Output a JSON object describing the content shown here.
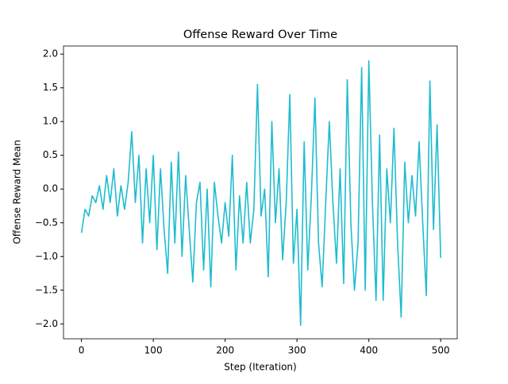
{
  "chart_data": {
    "type": "line",
    "title": "Offense Reward Over Time",
    "x_label": "Step (Iteration)",
    "y_label": "Offense Reward Mean",
    "x": [
      0,
      5,
      10,
      15,
      20,
      25,
      30,
      35,
      40,
      45,
      50,
      55,
      60,
      65,
      70,
      75,
      80,
      85,
      90,
      95,
      100,
      105,
      110,
      115,
      120,
      125,
      130,
      135,
      140,
      145,
      150,
      155,
      160,
      165,
      170,
      175,
      180,
      185,
      190,
      195,
      200,
      205,
      210,
      215,
      220,
      225,
      230,
      235,
      240,
      245,
      250,
      255,
      260,
      265,
      270,
      275,
      280,
      285,
      290,
      295,
      300,
      305,
      310,
      315,
      320,
      325,
      330,
      335,
      340,
      345,
      350,
      355,
      360,
      365,
      370,
      375,
      380,
      385,
      390,
      395,
      400,
      405,
      410,
      415,
      420,
      425,
      430,
      435,
      440,
      445,
      450,
      455,
      460,
      465,
      470,
      475,
      480,
      485,
      490,
      495,
      500
    ],
    "series": [
      {
        "name": "Offense Reward Mean",
        "color": "#1fbccf",
        "values": [
          -0.65,
          -0.3,
          -0.4,
          -0.1,
          -0.2,
          0.05,
          -0.3,
          0.2,
          -0.2,
          0.3,
          -0.4,
          0.05,
          -0.3,
          0.1,
          0.85,
          -0.2,
          0.5,
          -0.8,
          0.3,
          -0.5,
          0.5,
          -0.9,
          0.3,
          -0.6,
          -1.25,
          0.4,
          -0.8,
          0.55,
          -1.0,
          0.2,
          -0.6,
          -1.38,
          -0.2,
          0.1,
          -1.2,
          0.0,
          -1.45,
          0.1,
          -0.4,
          -0.8,
          -0.2,
          -0.7,
          0.5,
          -1.2,
          -0.1,
          -0.8,
          0.1,
          -0.8,
          -0.3,
          1.55,
          -0.4,
          0.0,
          -1.3,
          1.0,
          -0.5,
          0.3,
          -1.05,
          -0.2,
          1.4,
          -1.1,
          -0.3,
          -2.02,
          0.7,
          -1.2,
          -0.1,
          1.35,
          -0.8,
          -1.45,
          -0.2,
          1.0,
          -0.2,
          -1.1,
          0.3,
          -1.4,
          1.62,
          -0.5,
          -1.5,
          -0.8,
          1.8,
          -1.5,
          1.9,
          -0.2,
          -1.65,
          0.8,
          -1.65,
          0.3,
          -0.5,
          0.9,
          -0.8,
          -1.9,
          0.4,
          -0.5,
          0.2,
          -0.4,
          0.7,
          -0.5,
          -1.58,
          1.6,
          -0.6,
          0.95,
          -1.02
        ]
      }
    ],
    "xlim": [
      -25,
      523
    ],
    "ylim": [
      -2.22,
      2.12
    ],
    "xticks": [
      0,
      100,
      200,
      300,
      400,
      500
    ],
    "yticks": [
      {
        "value": -2,
        "label": "−2.0"
      },
      {
        "value": -1.5,
        "label": "−1.5"
      },
      {
        "value": -1,
        "label": "−1.0"
      },
      {
        "value": -0.5,
        "label": "−0.5"
      },
      {
        "value": 0,
        "label": "0.0"
      },
      {
        "value": 0.5,
        "label": "0.5"
      },
      {
        "value": 1,
        "label": "1.0"
      },
      {
        "value": 1.5,
        "label": "1.5"
      },
      {
        "value": 2,
        "label": "2.0"
      }
    ]
  }
}
